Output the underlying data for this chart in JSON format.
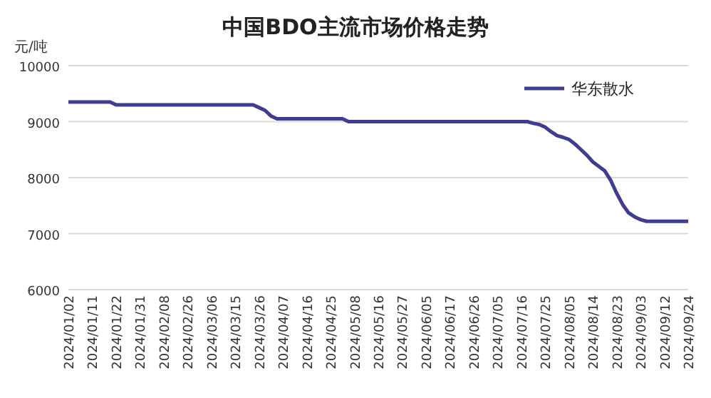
{
  "chart_data": {
    "type": "line",
    "title": "中国BDO主流市场价格走势",
    "ylabel": "元/吨",
    "categories": [
      "2024/01/02",
      null,
      null,
      null,
      "2024/01/11",
      null,
      null,
      null,
      "2024/01/22",
      null,
      null,
      null,
      "2024/01/31",
      null,
      null,
      null,
      "2024/02/08",
      null,
      null,
      null,
      "2024/02/26",
      null,
      null,
      null,
      "2024/03/06",
      null,
      null,
      null,
      "2024/03/15",
      null,
      null,
      null,
      "2024/03/26",
      null,
      null,
      null,
      "2024/04/07",
      null,
      null,
      null,
      "2024/04/16",
      null,
      null,
      null,
      "2024/04/25",
      null,
      null,
      null,
      "2024/05/08",
      null,
      null,
      null,
      "2024/05/16",
      null,
      null,
      null,
      "2024/05/27",
      null,
      null,
      null,
      "2024/06/05",
      null,
      null,
      null,
      "2024/06/17",
      null,
      null,
      null,
      "2024/06/26",
      null,
      null,
      null,
      "2024/07/05",
      null,
      null,
      null,
      "2024/07/16",
      null,
      null,
      null,
      "2024/07/25",
      null,
      null,
      null,
      "2024/08/05",
      null,
      null,
      null,
      "2024/08/14",
      null,
      null,
      null,
      "2024/08/23",
      null,
      null,
      null,
      "2024/09/03",
      null,
      null,
      null,
      "2024/09/12",
      null,
      null,
      null,
      "2024/09/24"
    ],
    "series": [
      {
        "name": "华东散水",
        "color": "#3f3d8f",
        "values": [
          9350,
          9350,
          9350,
          9350,
          9350,
          9350,
          9350,
          9350,
          9300,
          9300,
          9300,
          9300,
          9300,
          9300,
          9300,
          9300,
          9300,
          9300,
          9300,
          9300,
          9300,
          9300,
          9300,
          9300,
          9300,
          9300,
          9300,
          9300,
          9300,
          9300,
          9300,
          9300,
          9250,
          9200,
          9100,
          9050,
          9050,
          9050,
          9050,
          9050,
          9050,
          9050,
          9050,
          9050,
          9050,
          9050,
          9050,
          9000,
          9000,
          9000,
          9000,
          9000,
          9000,
          9000,
          9000,
          9000,
          9000,
          9000,
          9000,
          9000,
          9000,
          9000,
          9000,
          9000,
          9000,
          9000,
          9000,
          9000,
          9000,
          9000,
          9000,
          9000,
          9000,
          9000,
          9000,
          9000,
          9000,
          9000,
          8970,
          8950,
          8900,
          8820,
          8750,
          8720,
          8680,
          8600,
          8500,
          8400,
          8280,
          8200,
          8120,
          7950,
          7720,
          7520,
          7370,
          7300,
          7250,
          7220,
          7220,
          7220,
          7220,
          7220,
          7220,
          7220,
          7220
        ]
      }
    ],
    "ylim": [
      6000,
      10000
    ],
    "yticks": [
      6000,
      7000,
      8000,
      9000,
      10000
    ],
    "grid": "y",
    "legend": "top right",
    "line_style": "solid",
    "marker": "none"
  }
}
